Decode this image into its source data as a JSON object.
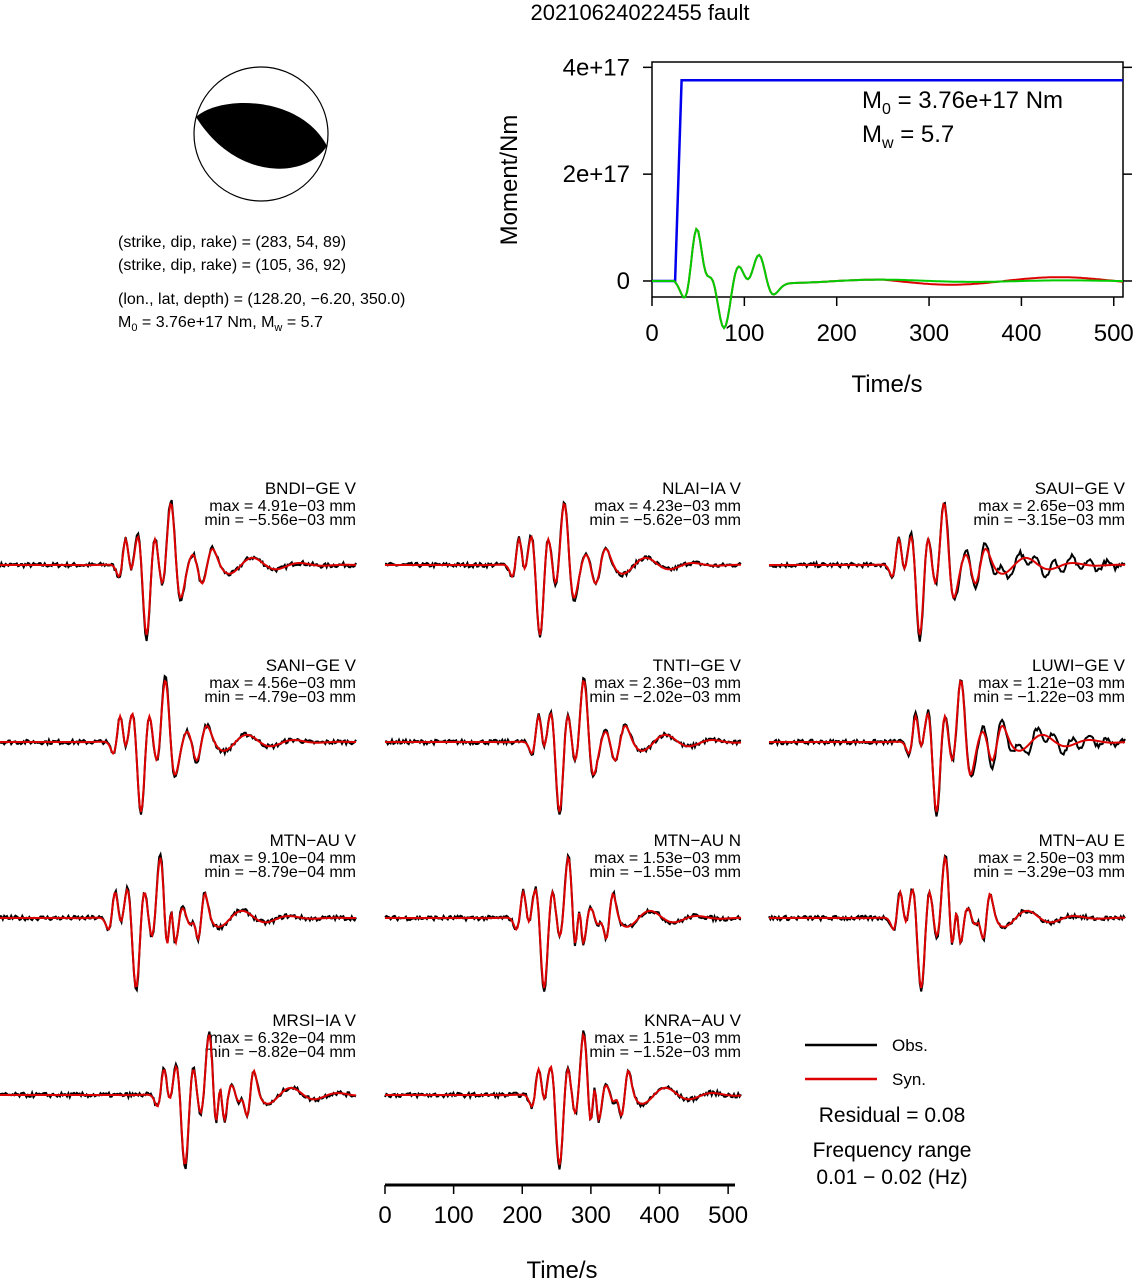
{
  "title": "20210624022455 fault",
  "mechanism": {
    "line1": "(strike, dip, rake) = (283, 54, 89)",
    "line2": "(strike, dip, rake) = (105, 36, 92)",
    "line3": "(lon., lat, depth) = (128.20, −6.20, 350.0)",
    "line4_pre": "M",
    "line4_sub": "0",
    "line4_post": " = 3.76e+17 Nm, M",
    "line4_sub2": "w",
    "line4_tail": " = 5.7"
  },
  "moment_panel": {
    "m0_pre": "M",
    "m0_sub": "0",
    "m0_post": " = 3.76e+17 Nm",
    "mw_pre": "M",
    "mw_sub": "w",
    "mw_post": " = 5.7"
  },
  "colors": {
    "obs": "#000000",
    "syn": "#dd0000",
    "moment": "#0000ee",
    "stf": "#00cc00"
  },
  "chart_data": [
    {
      "type": "line",
      "ylabel": "Moment/Nm",
      "xlabel": "Time/s",
      "xlim": [
        0,
        510
      ],
      "ylim": [
        -3e+16,
        4.1e+17
      ],
      "xticks": [
        "0",
        "100",
        "200",
        "300",
        "400",
        "500"
      ],
      "yticks": [
        "0",
        "2e+17",
        "4e+17"
      ],
      "xtick_values": [
        0,
        100,
        200,
        300,
        400,
        500
      ],
      "ytick_values": [
        0,
        2e+17,
        4e+17
      ],
      "series": [
        {
          "x": [
            0,
            25,
            32,
            510
          ],
          "y": [
            0,
            0,
            3.76e+17,
            3.76e+17
          ]
        }
      ]
    },
    {
      "type": "line",
      "xlabel": "Time/s",
      "xlim": [
        0,
        510
      ],
      "xticks": [
        "0",
        "100",
        "200",
        "300",
        "400",
        "500"
      ],
      "xtick_values": [
        0,
        100,
        200,
        300,
        400,
        500
      ],
      "traces": [
        {
          "label": "BNDI−GE V",
          "max": "max = 4.91e−03 mm",
          "min": "min = −5.56e−03 mm"
        },
        {
          "label": "NLAI−IA V",
          "max": "max = 4.23e−03 mm",
          "min": "min = −5.62e−03 mm"
        },
        {
          "label": "SAUI−GE V",
          "max": "max = 2.65e−03 mm",
          "min": "min = −3.15e−03 mm"
        },
        {
          "label": "SANI−GE V",
          "max": "max = 4.56e−03 mm",
          "min": "min = −4.79e−03 mm"
        },
        {
          "label": "TNTI−GE V",
          "max": "max = 2.36e−03 mm",
          "min": "min = −2.02e−03 mm"
        },
        {
          "label": "LUWI−GE V",
          "max": "max = 1.21e−03 mm",
          "min": "min = −1.22e−03 mm"
        },
        {
          "label": "MTN−AU V",
          "max": "max = 9.10e−04 mm",
          "min": "min = −8.79e−04 mm"
        },
        {
          "label": "MTN−AU N",
          "max": "max = 1.53e−03 mm",
          "min": "min = −1.55e−03 mm"
        },
        {
          "label": "MTN−AU E",
          "max": "max = 2.50e−03 mm",
          "min": "min = −3.29e−03 mm"
        },
        {
          "label": "MRSI−IA V",
          "max": "max = 6.32e−04 mm",
          "min": "min = −8.82e−04 mm"
        },
        {
          "label": "KNRA−AU V",
          "max": "max = 1.51e−03 mm",
          "min": "min = −1.52e−03 mm"
        }
      ]
    }
  ],
  "legend": {
    "obs": "Obs.",
    "syn": "Syn.",
    "residual": "Residual = 0.08",
    "freq_title": "Frequency range",
    "freq_value": "0.01 − 0.02 (Hz)"
  }
}
